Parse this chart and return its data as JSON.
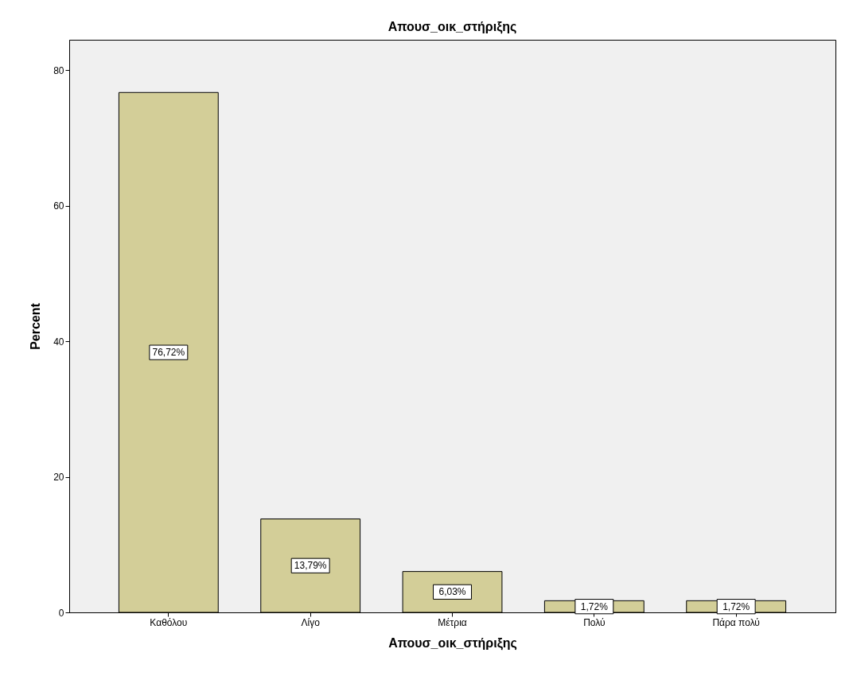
{
  "chart_data": {
    "type": "bar",
    "title": "Απουσ_οικ_στήριξης",
    "xlabel": "Απουσ_οικ_στήριξης",
    "ylabel": "Percent",
    "categories": [
      "Καθόλου",
      "Λίγο",
      "Μέτρια",
      "Πολύ",
      "Πάρα πολύ"
    ],
    "values": [
      76.72,
      13.79,
      6.03,
      1.72,
      1.72
    ],
    "value_labels": [
      "76,72%",
      "13,79%",
      "6,03%",
      "1,72%",
      "1,72%"
    ],
    "color": "#d3ce98",
    "ylim": [
      0,
      84.5
    ],
    "yticks": [
      0,
      20,
      40,
      60,
      80
    ],
    "grid": false
  }
}
